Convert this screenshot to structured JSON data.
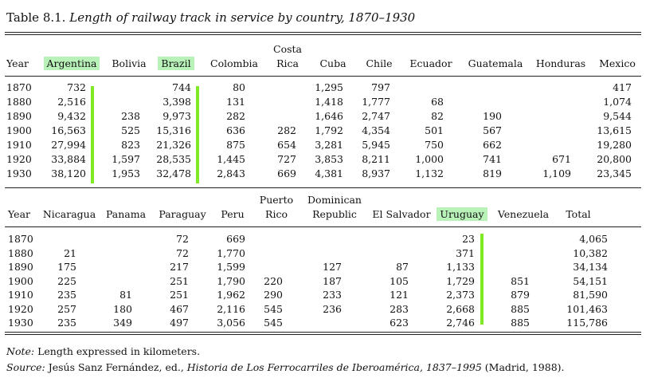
{
  "caption": {
    "label": "Table 8.1.",
    "title": "Length of railway track in service by country, 1870–1930"
  },
  "table1": {
    "year_header": "Year",
    "headers": [
      {
        "lines": [
          "Argentina"
        ],
        "highlight": true
      },
      {
        "lines": [
          "Bolivia"
        ]
      },
      {
        "lines": [
          "Brazil"
        ],
        "highlight": true
      },
      {
        "lines": [
          "Colombia"
        ]
      },
      {
        "lines": [
          "Costa",
          "Rica"
        ]
      },
      {
        "lines": [
          "Cuba"
        ]
      },
      {
        "lines": [
          "Chile"
        ]
      },
      {
        "lines": [
          "Ecuador"
        ]
      },
      {
        "lines": [
          "Guatemala"
        ]
      },
      {
        "lines": [
          "Honduras"
        ]
      },
      {
        "lines": [
          "Mexico"
        ]
      }
    ],
    "rows": [
      {
        "year": "1870",
        "values": [
          "732",
          "",
          "744",
          "80",
          "",
          "1,295",
          "797",
          "",
          "",
          "",
          "417"
        ]
      },
      {
        "year": "1880",
        "values": [
          "2,516",
          "",
          "3,398",
          "131",
          "",
          "1,418",
          "1,777",
          "68",
          "",
          "",
          "1,074"
        ]
      },
      {
        "year": "1890",
        "values": [
          "9,432",
          "238",
          "9,973",
          "282",
          "",
          "1,646",
          "2,747",
          "82",
          "190",
          "",
          "9,544"
        ]
      },
      {
        "year": "1900",
        "values": [
          "16,563",
          "525",
          "15,316",
          "636",
          "282",
          "1,792",
          "4,354",
          "501",
          "567",
          "",
          "13,615"
        ]
      },
      {
        "year": "1910",
        "values": [
          "27,994",
          "823",
          "21,326",
          "875",
          "654",
          "3,281",
          "5,945",
          "750",
          "662",
          "",
          "19,280"
        ]
      },
      {
        "year": "1920",
        "values": [
          "33,884",
          "1,597",
          "28,535",
          "1,445",
          "727",
          "3,853",
          "8,211",
          "1,000",
          "741",
          "671",
          "20,800"
        ]
      },
      {
        "year": "1930",
        "values": [
          "38,120",
          "1,953",
          "32,478",
          "2,843",
          "669",
          "4,381",
          "8,937",
          "1,132",
          "819",
          "1,109",
          "23,345"
        ]
      }
    ]
  },
  "table2": {
    "year_header": "Year",
    "headers": [
      {
        "lines": [
          "Nicaragua"
        ]
      },
      {
        "lines": [
          "Panama"
        ]
      },
      {
        "lines": [
          "Paraguay"
        ]
      },
      {
        "lines": [
          "Peru"
        ]
      },
      {
        "lines": [
          "Puerto",
          "Rico"
        ]
      },
      {
        "lines": [
          "Dominican",
          "Republic"
        ]
      },
      {
        "lines": [
          "El Salvador"
        ]
      },
      {
        "lines": [
          "Uruguay"
        ],
        "highlight": true
      },
      {
        "lines": [
          "Venezuela"
        ]
      },
      {
        "lines": [
          "Total"
        ]
      }
    ],
    "rows": [
      {
        "year": "1870",
        "values": [
          "",
          "",
          "72",
          "669",
          "",
          "",
          "",
          "23",
          "",
          "4,065"
        ]
      },
      {
        "year": "1880",
        "values": [
          "21",
          "",
          "72",
          "1,770",
          "",
          "",
          "",
          "371",
          "",
          "10,382"
        ]
      },
      {
        "year": "1890",
        "values": [
          "175",
          "",
          "217",
          "1,599",
          "",
          "127",
          "87",
          "1,133",
          "",
          "34,134"
        ]
      },
      {
        "year": "1900",
        "values": [
          "225",
          "",
          "251",
          "1,790",
          "220",
          "187",
          "105",
          "1,729",
          "851",
          "54,151"
        ]
      },
      {
        "year": "1910",
        "values": [
          "235",
          "81",
          "251",
          "1,962",
          "290",
          "233",
          "121",
          "2,373",
          "879",
          "81,590"
        ]
      },
      {
        "year": "1920",
        "values": [
          "257",
          "180",
          "467",
          "2,116",
          "545",
          "236",
          "283",
          "2,668",
          "885",
          "101,463"
        ]
      },
      {
        "year": "1930",
        "values": [
          "235",
          "349",
          "497",
          "3,056",
          "545",
          "",
          "623",
          "2,746",
          "885",
          "115,786"
        ]
      }
    ]
  },
  "notes": {
    "note_label": "Note:",
    "note_text": " Length expressed in kilometers.",
    "source_label": "Source:",
    "source_author": " Jesús Sanz Fernández, ed., ",
    "source_title": "Historia de Los Ferrocarriles de Iberoamérica, 1837–1995",
    "source_tail": " (Madrid, 1988)."
  },
  "colors": {
    "highlight_fill": "#b9f2b9",
    "highlight_bar": "#7fea23"
  }
}
